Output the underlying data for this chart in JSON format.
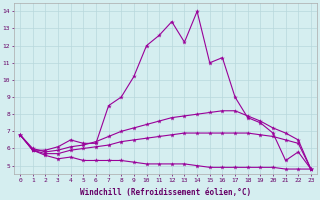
{
  "xlabel": "Windchill (Refroidissement éolien,°C)",
  "background_color": "#d5eef0",
  "line_color": "#990099",
  "grid_color": "#b8d8dc",
  "xlim": [
    -0.5,
    23.5
  ],
  "ylim": [
    4.5,
    14.5
  ],
  "xticks": [
    0,
    1,
    2,
    3,
    4,
    5,
    6,
    7,
    8,
    9,
    10,
    11,
    12,
    13,
    14,
    15,
    16,
    17,
    18,
    19,
    20,
    21,
    22,
    23
  ],
  "yticks": [
    5,
    6,
    7,
    8,
    9,
    10,
    11,
    12,
    13,
    14
  ],
  "lines": [
    {
      "x": [
        0,
        1,
        2,
        3,
        4,
        5,
        6,
        7,
        8,
        9,
        10,
        11,
        12,
        13,
        14,
        15,
        16,
        17,
        18,
        19,
        20,
        21,
        22,
        23
      ],
      "y": [
        6.8,
        5.9,
        5.9,
        6.1,
        6.5,
        6.3,
        6.3,
        8.5,
        9.0,
        10.2,
        12.0,
        12.6,
        13.4,
        12.2,
        14.0,
        11.0,
        11.3,
        9.0,
        7.8,
        7.5,
        6.9,
        5.3,
        5.8,
        4.8
      ]
    },
    {
      "x": [
        0,
        1,
        2,
        3,
        4,
        5,
        6,
        7,
        8,
        9,
        10,
        11,
        12,
        13,
        14,
        15,
        16,
        17,
        18,
        19,
        20,
        21,
        22,
        23
      ],
      "y": [
        6.8,
        6.0,
        5.8,
        5.9,
        6.1,
        6.2,
        6.4,
        6.7,
        7.0,
        7.2,
        7.4,
        7.6,
        7.8,
        7.9,
        8.0,
        8.1,
        8.2,
        8.2,
        7.9,
        7.6,
        7.2,
        6.9,
        6.5,
        4.8
      ]
    },
    {
      "x": [
        0,
        1,
        2,
        3,
        4,
        5,
        6,
        7,
        8,
        9,
        10,
        11,
        12,
        13,
        14,
        15,
        16,
        17,
        18,
        19,
        20,
        21,
        22,
        23
      ],
      "y": [
        6.8,
        5.9,
        5.7,
        5.7,
        5.9,
        6.0,
        6.1,
        6.2,
        6.4,
        6.5,
        6.6,
        6.7,
        6.8,
        6.9,
        6.9,
        6.9,
        6.9,
        6.9,
        6.9,
        6.8,
        6.7,
        6.5,
        6.3,
        4.8
      ]
    },
    {
      "x": [
        0,
        1,
        2,
        3,
        4,
        5,
        6,
        7,
        8,
        9,
        10,
        11,
        12,
        13,
        14,
        15,
        16,
        17,
        18,
        19,
        20,
        21,
        22,
        23
      ],
      "y": [
        6.8,
        5.9,
        5.6,
        5.4,
        5.5,
        5.3,
        5.3,
        5.3,
        5.3,
        5.2,
        5.1,
        5.1,
        5.1,
        5.1,
        5.0,
        4.9,
        4.9,
        4.9,
        4.9,
        4.9,
        4.9,
        4.8,
        4.8,
        4.8
      ]
    }
  ]
}
